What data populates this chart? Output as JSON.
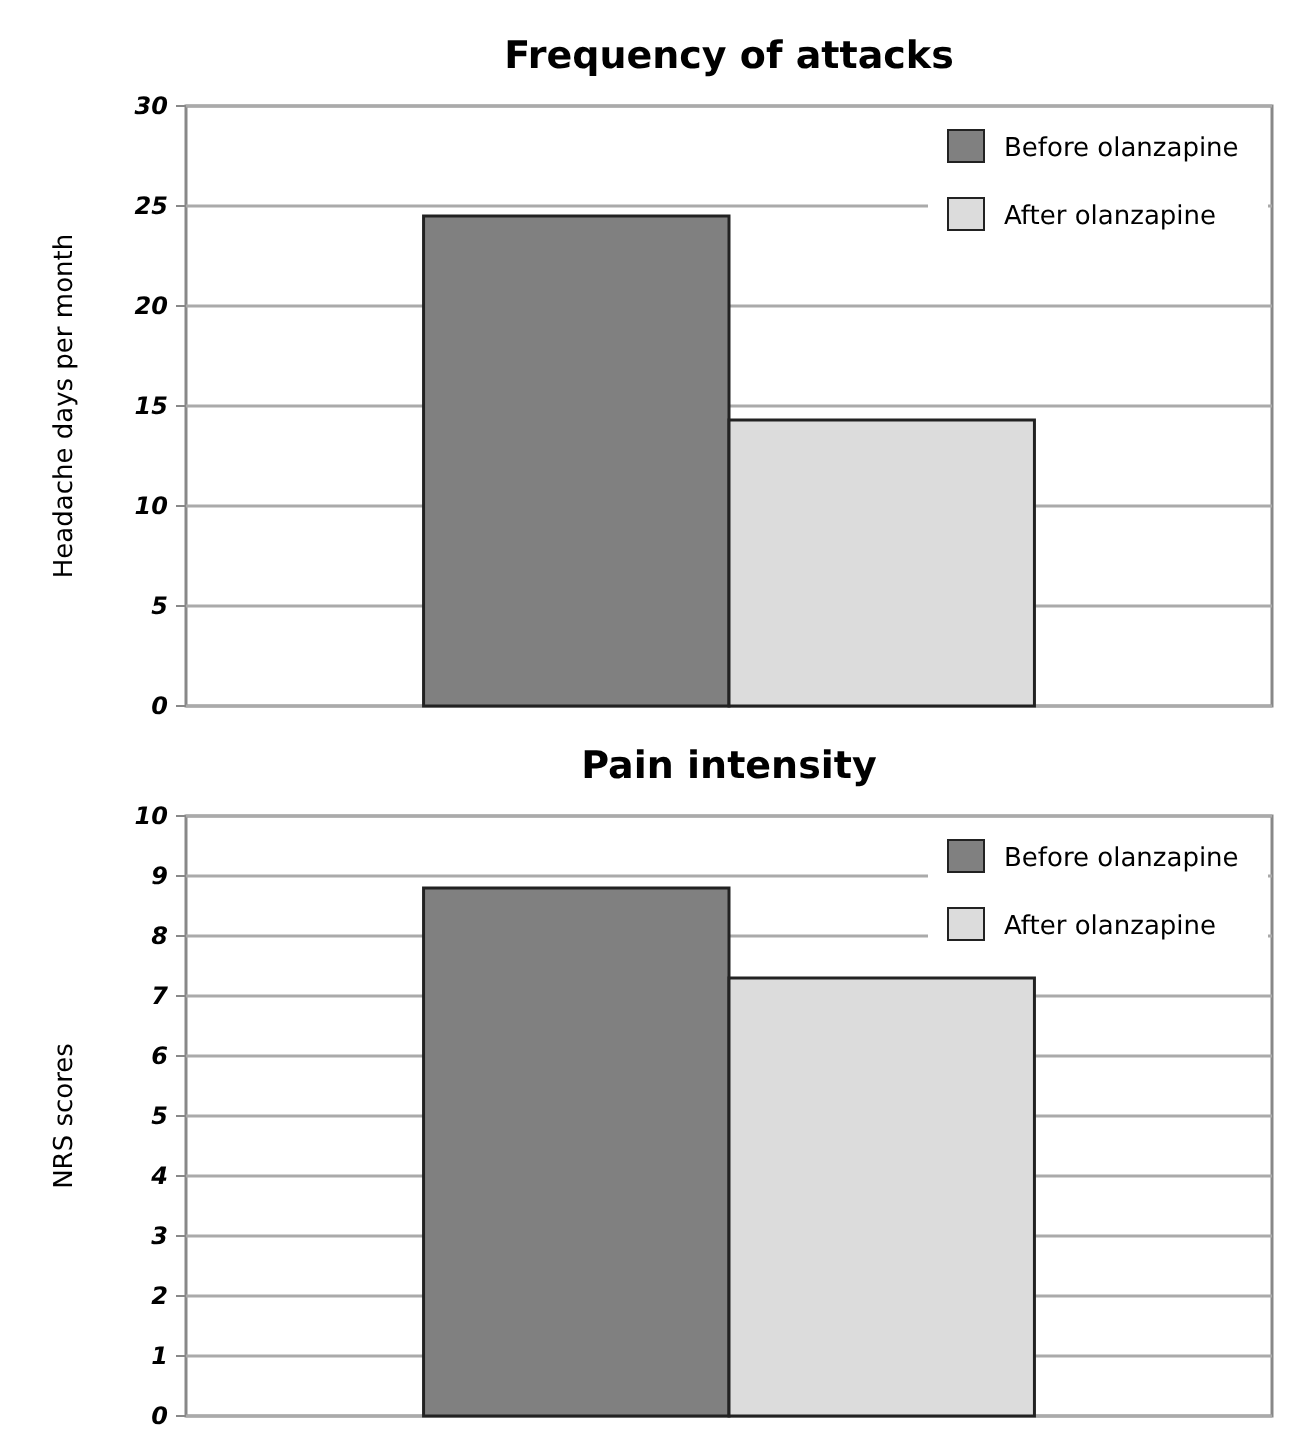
{
  "chart_data": [
    {
      "type": "bar",
      "title": "Frequency of attacks",
      "ylabel": "Headache days per month",
      "categories": [
        null
      ],
      "series": [
        {
          "name": "Before olanzapine",
          "color": "#808080",
          "values": [
            24.5
          ]
        },
        {
          "name": "After olanzapine",
          "color": "#dcdcdc",
          "values": [
            14.3
          ]
        }
      ],
      "ylim": [
        0,
        30
      ],
      "yticks": [
        0,
        5,
        10,
        15,
        20,
        25,
        30
      ],
      "grid": "y",
      "legend": "top right"
    },
    {
      "type": "bar",
      "title": "Pain intensity",
      "ylabel": "NRS scores",
      "categories": [
        null
      ],
      "series": [
        {
          "name": "Before olanzapine",
          "color": "#808080",
          "values": [
            8.8
          ]
        },
        {
          "name": "After olanzapine",
          "color": "#dcdcdc",
          "values": [
            7.3
          ]
        }
      ],
      "ylim": [
        0,
        10
      ],
      "yticks": [
        0,
        1,
        2,
        3,
        4,
        5,
        6,
        7,
        8,
        9,
        10
      ],
      "grid": "y",
      "legend": "top right"
    }
  ]
}
